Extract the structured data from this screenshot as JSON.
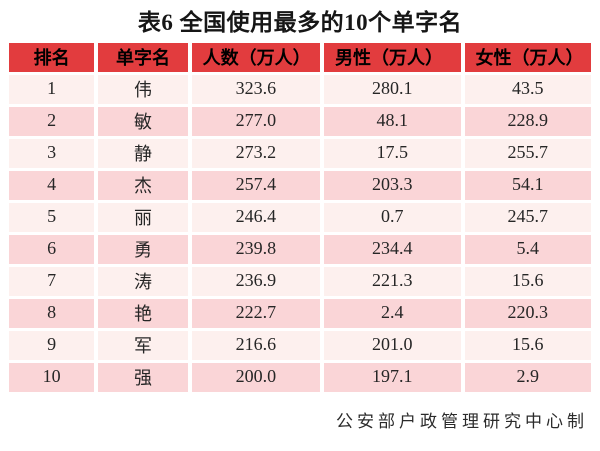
{
  "chart_data": {
    "type": "table",
    "title": "表6 全国使用最多的10个单字名",
    "columns": [
      "排名",
      "单字名",
      "人数（万人）",
      "男性（万人）",
      "女性（万人）"
    ],
    "rows": [
      [
        "1",
        "伟",
        "323.6",
        "280.1",
        "43.5"
      ],
      [
        "2",
        "敏",
        "277.0",
        "48.1",
        "228.9"
      ],
      [
        "3",
        "静",
        "273.2",
        "17.5",
        "255.7"
      ],
      [
        "4",
        "杰",
        "257.4",
        "203.3",
        "54.1"
      ],
      [
        "5",
        "丽",
        "246.4",
        "0.7",
        "245.7"
      ],
      [
        "6",
        "勇",
        "239.8",
        "234.4",
        "5.4"
      ],
      [
        "7",
        "涛",
        "236.9",
        "221.3",
        "15.6"
      ],
      [
        "8",
        "艳",
        "222.7",
        "2.4",
        "220.3"
      ],
      [
        "9",
        "军",
        "216.6",
        "201.0",
        "15.6"
      ],
      [
        "10",
        "强",
        "200.0",
        "197.1",
        "2.9"
      ]
    ],
    "source_note": "公安部户政管理研究中心制",
    "layout": {
      "header_align": "rank and name centered, numeric headers left-aligned",
      "body_align": "center",
      "zebra_striping": true
    }
  },
  "colors": {
    "header_bg": "#e23c3e",
    "header_text": "#000000",
    "row_light": "#fdf0ee",
    "row_dark": "#fad5d7",
    "body_text": "#262626",
    "page_bg": "#ffffff"
  }
}
